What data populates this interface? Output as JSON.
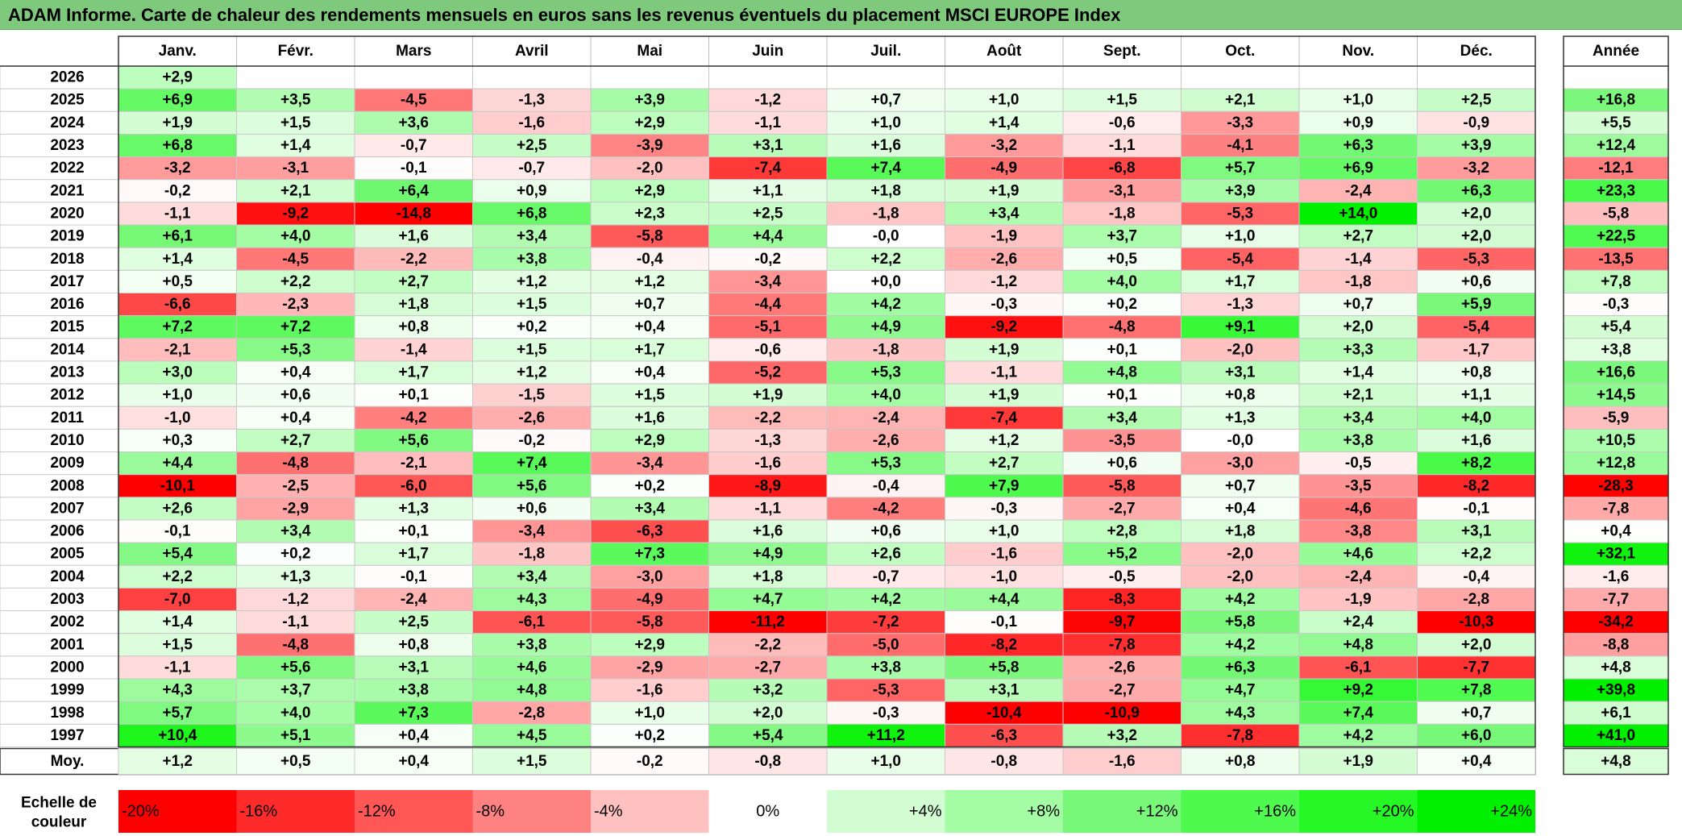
{
  "title": "ADAM Informe. Carte de chaleur des rendements mensuels en euros sans les revenus éventuels du placement MSCI EUROPE Index",
  "chart_data": {
    "type": "heatmap",
    "title": "ADAM Informe. Carte de chaleur des rendements mensuels en euros sans les revenus éventuels du placement MSCI EUROPE Index",
    "columns": [
      "Janv.",
      "Févr.",
      "Mars",
      "Avril",
      "Mai",
      "Juin",
      "Juil.",
      "Août",
      "Sept.",
      "Oct.",
      "Nov.",
      "Déc."
    ],
    "year_column_label": "Année",
    "rows": [
      {
        "year": "2026",
        "values": [
          "+2,9",
          "",
          "",
          "",
          "",
          "",
          "",
          "",
          "",
          "",
          "",
          ""
        ],
        "annual": ""
      },
      {
        "year": "2025",
        "values": [
          "+6,9",
          "+3,5",
          "-4,5",
          "-1,3",
          "+3,9",
          "-1,2",
          "+0,7",
          "+1,0",
          "+1,5",
          "+2,1",
          "+1,0",
          "+2,5"
        ],
        "annual": "+16,8"
      },
      {
        "year": "2024",
        "values": [
          "+1,9",
          "+1,5",
          "+3,6",
          "-1,6",
          "+2,9",
          "-1,1",
          "+1,0",
          "+1,4",
          "-0,6",
          "-3,3",
          "+0,9",
          "-0,9"
        ],
        "annual": "+5,5"
      },
      {
        "year": "2023",
        "values": [
          "+6,8",
          "+1,4",
          "-0,7",
          "+2,5",
          "-3,9",
          "+3,1",
          "+1,6",
          "-3,2",
          "-1,1",
          "-4,1",
          "+6,3",
          "+3,9"
        ],
        "annual": "+12,4"
      },
      {
        "year": "2022",
        "values": [
          "-3,2",
          "-3,1",
          "-0,1",
          "-0,7",
          "-2,0",
          "-7,4",
          "+7,4",
          "-4,9",
          "-6,8",
          "+5,7",
          "+6,9",
          "-3,2"
        ],
        "annual": "-12,1"
      },
      {
        "year": "2021",
        "values": [
          "-0,2",
          "+2,1",
          "+6,4",
          "+0,9",
          "+2,9",
          "+1,1",
          "+1,8",
          "+1,9",
          "-3,1",
          "+3,9",
          "-2,4",
          "+6,3"
        ],
        "annual": "+23,3"
      },
      {
        "year": "2020",
        "values": [
          "-1,1",
          "-9,2",
          "-14,8",
          "+6,8",
          "+2,3",
          "+2,5",
          "-1,8",
          "+3,4",
          "-1,8",
          "-5,3",
          "+14,0",
          "+2,0"
        ],
        "annual": "-5,8"
      },
      {
        "year": "2019",
        "values": [
          "+6,1",
          "+4,0",
          "+1,6",
          "+3,4",
          "-5,8",
          "+4,4",
          "-0,0",
          "-1,9",
          "+3,7",
          "+1,0",
          "+2,7",
          "+2,0"
        ],
        "annual": "+22,5"
      },
      {
        "year": "2018",
        "values": [
          "+1,4",
          "-4,5",
          "-2,2",
          "+3,8",
          "-0,4",
          "-0,2",
          "+2,2",
          "-2,6",
          "+0,5",
          "-5,4",
          "-1,4",
          "-5,3"
        ],
        "annual": "-13,5"
      },
      {
        "year": "2017",
        "values": [
          "+0,5",
          "+2,2",
          "+2,7",
          "+1,2",
          "+1,2",
          "-3,4",
          "+0,0",
          "-1,2",
          "+4,0",
          "+1,7",
          "-1,8",
          "+0,6"
        ],
        "annual": "+7,8"
      },
      {
        "year": "2016",
        "values": [
          "-6,6",
          "-2,3",
          "+1,8",
          "+1,5",
          "+0,7",
          "-4,4",
          "+4,2",
          "-0,3",
          "+0,2",
          "-1,3",
          "+0,7",
          "+5,9"
        ],
        "annual": "-0,3"
      },
      {
        "year": "2015",
        "values": [
          "+7,2",
          "+7,2",
          "+0,8",
          "+0,2",
          "+0,4",
          "-5,1",
          "+4,9",
          "-9,2",
          "-4,8",
          "+9,1",
          "+2,0",
          "-5,4"
        ],
        "annual": "+5,4"
      },
      {
        "year": "2014",
        "values": [
          "-2,1",
          "+5,3",
          "-1,4",
          "+1,5",
          "+1,7",
          "-0,6",
          "-1,8",
          "+1,9",
          "+0,1",
          "-2,0",
          "+3,3",
          "-1,7"
        ],
        "annual": "+3,8"
      },
      {
        "year": "2013",
        "values": [
          "+3,0",
          "+0,4",
          "+1,7",
          "+1,2",
          "+0,4",
          "-5,2",
          "+5,3",
          "-1,1",
          "+4,8",
          "+3,1",
          "+1,4",
          "+0,8"
        ],
        "annual": "+16,6"
      },
      {
        "year": "2012",
        "values": [
          "+1,0",
          "+0,6",
          "+0,1",
          "-1,5",
          "+1,5",
          "+1,9",
          "+4,0",
          "+1,9",
          "+0,1",
          "+0,8",
          "+2,1",
          "+1,1"
        ],
        "annual": "+14,5"
      },
      {
        "year": "2011",
        "values": [
          "-1,0",
          "+0,4",
          "-4,2",
          "-2,6",
          "+1,6",
          "-2,2",
          "-2,4",
          "-7,4",
          "+3,4",
          "+1,3",
          "+3,4",
          "+4,0"
        ],
        "annual": "-5,9"
      },
      {
        "year": "2010",
        "values": [
          "+0,3",
          "+2,7",
          "+5,6",
          "-0,2",
          "+2,9",
          "-1,3",
          "-2,6",
          "+1,2",
          "-3,5",
          "-0,0",
          "+3,8",
          "+1,6"
        ],
        "annual": "+10,5"
      },
      {
        "year": "2009",
        "values": [
          "+4,4",
          "-4,8",
          "-2,1",
          "+7,4",
          "-3,4",
          "-1,6",
          "+5,3",
          "+2,7",
          "+0,6",
          "-3,0",
          "-0,5",
          "+8,2"
        ],
        "annual": "+12,8"
      },
      {
        "year": "2008",
        "values": [
          "-10,1",
          "-2,5",
          "-6,0",
          "+5,6",
          "+0,2",
          "-8,9",
          "-0,4",
          "+7,9",
          "-5,8",
          "+0,7",
          "-3,5",
          "-8,2"
        ],
        "annual": "-28,3"
      },
      {
        "year": "2007",
        "values": [
          "+2,6",
          "-2,9",
          "+1,3",
          "+0,6",
          "+3,4",
          "-1,1",
          "-4,2",
          "-0,3",
          "-2,7",
          "+0,4",
          "-4,6",
          "-0,1"
        ],
        "annual": "-7,8"
      },
      {
        "year": "2006",
        "values": [
          "-0,1",
          "+3,4",
          "+0,1",
          "-3,4",
          "-6,3",
          "+1,6",
          "+0,6",
          "+1,0",
          "+2,8",
          "+1,8",
          "-3,8",
          "+3,1"
        ],
        "annual": "+0,4"
      },
      {
        "year": "2005",
        "values": [
          "+5,4",
          "+0,2",
          "+1,7",
          "-1,8",
          "+7,3",
          "+4,9",
          "+2,6",
          "-1,6",
          "+5,2",
          "-2,0",
          "+4,6",
          "+2,2"
        ],
        "annual": "+32,1"
      },
      {
        "year": "2004",
        "values": [
          "+2,2",
          "+1,3",
          "-0,1",
          "+3,4",
          "-3,0",
          "+1,8",
          "-0,7",
          "-1,0",
          "-0,5",
          "-2,0",
          "-2,4",
          "-0,4"
        ],
        "annual": "-1,6"
      },
      {
        "year": "2003",
        "values": [
          "-7,0",
          "-1,2",
          "-2,4",
          "+4,3",
          "-4,9",
          "+4,7",
          "+4,2",
          "+4,4",
          "-8,3",
          "+4,2",
          "-1,9",
          "-2,8"
        ],
        "annual": "-7,7"
      },
      {
        "year": "2002",
        "values": [
          "+1,4",
          "-1,1",
          "+2,5",
          "-6,1",
          "-5,8",
          "-11,2",
          "-7,2",
          "-0,1",
          "-9,7",
          "+5,8",
          "+2,4",
          "-10,3"
        ],
        "annual": "-34,2"
      },
      {
        "year": "2001",
        "values": [
          "+1,5",
          "-4,8",
          "+0,8",
          "+3,8",
          "+2,9",
          "-2,2",
          "-5,0",
          "-8,2",
          "-7,8",
          "+4,2",
          "+4,8",
          "+2,0"
        ],
        "annual": "-8,8"
      },
      {
        "year": "2000",
        "values": [
          "-1,1",
          "+5,6",
          "+3,1",
          "+4,6",
          "-2,9",
          "-2,7",
          "+3,8",
          "+5,8",
          "-2,6",
          "+6,3",
          "-6,1",
          "-7,7"
        ],
        "annual": "+4,8"
      },
      {
        "year": "1999",
        "values": [
          "+4,3",
          "+3,7",
          "+3,8",
          "+4,8",
          "-1,6",
          "+3,2",
          "-5,3",
          "+3,1",
          "-2,7",
          "+4,7",
          "+9,2",
          "+7,8"
        ],
        "annual": "+39,8"
      },
      {
        "year": "1998",
        "values": [
          "+5,7",
          "+4,0",
          "+7,3",
          "-2,8",
          "+1,0",
          "+2,0",
          "-0,3",
          "-10,4",
          "-10,9",
          "+4,3",
          "+7,4",
          "+0,7"
        ],
        "annual": "+6,1"
      },
      {
        "year": "1997",
        "values": [
          "+10,4",
          "+5,1",
          "+0,4",
          "+4,5",
          "+0,2",
          "+5,4",
          "+11,2",
          "-6,3",
          "+3,2",
          "-7,8",
          "+4,2",
          "+6,0"
        ],
        "annual": "+41,0"
      }
    ],
    "average": {
      "label": "Moy.",
      "values": [
        "+1,2",
        "+0,5",
        "+0,4",
        "+1,5",
        "-0,2",
        "-0,8",
        "+1,0",
        "-0,8",
        "-1,6",
        "+0,8",
        "+1,9",
        "+0,4"
      ],
      "annual": "+4,8"
    },
    "scale": {
      "label_lines": [
        "Echelle de",
        "couleur"
      ],
      "steps": [
        {
          "label": "-20%",
          "value": -20,
          "color": "#ff0000"
        },
        {
          "label": "-16%",
          "value": -16,
          "color": "#ff2b2b"
        },
        {
          "label": "-12%",
          "value": -12,
          "color": "#ff5656"
        },
        {
          "label": "-8%",
          "value": -8,
          "color": "#ff8282"
        },
        {
          "label": "-4%",
          "value": -4,
          "color": "#ffc0c0"
        },
        {
          "label": "0%",
          "value": 0,
          "color": "#ffffff"
        },
        {
          "label": "+4%",
          "value": 4,
          "color": "#d2fdd2"
        },
        {
          "label": "+8%",
          "value": 8,
          "color": "#a4fca4"
        },
        {
          "label": "+12%",
          "value": 12,
          "color": "#78f878"
        },
        {
          "label": "+16%",
          "value": 16,
          "color": "#4dfa4d"
        },
        {
          "label": "+20%",
          "value": 20,
          "color": "#26f826"
        },
        {
          "label": "+24%",
          "value": 24,
          "color": "#00f000"
        }
      ]
    }
  }
}
